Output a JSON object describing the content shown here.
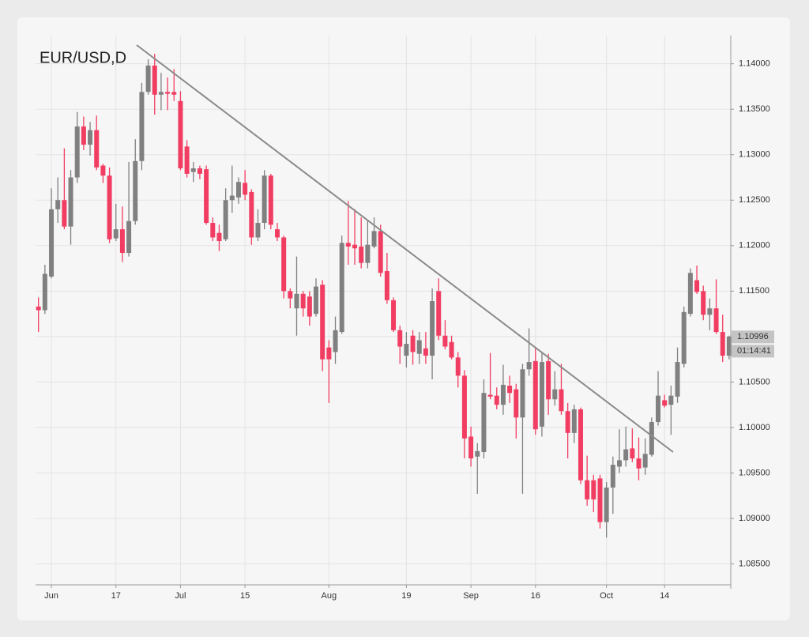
{
  "chart_data": {
    "type": "candlestick",
    "title": "EUR/USD,D",
    "categories": [
      null,
      null,
      "Jun",
      null,
      null,
      null,
      null,
      null,
      null,
      null,
      null,
      null,
      "17",
      null,
      null,
      null,
      null,
      null,
      null,
      null,
      null,
      null,
      "Jul",
      null,
      null,
      null,
      null,
      null,
      null,
      null,
      null,
      null,
      "15",
      null,
      null,
      null,
      null,
      null,
      null,
      null,
      null,
      null,
      null,
      null,
      null,
      "Aug",
      null,
      null,
      null,
      null,
      null,
      null,
      null,
      null,
      null,
      null,
      null,
      "19",
      null,
      null,
      null,
      null,
      null,
      null,
      null,
      null,
      null,
      "Sep",
      null,
      null,
      null,
      null,
      null,
      null,
      null,
      null,
      null,
      "16",
      null,
      null,
      null,
      null,
      null,
      null,
      null,
      null,
      null,
      null,
      "Oct",
      null,
      null,
      null,
      null,
      null,
      null,
      null,
      null,
      "14",
      null,
      null,
      null,
      null,
      null,
      null,
      null,
      null,
      null,
      null
    ],
    "open": [
      1.1133,
      1.1129,
      1.1166,
      1.124,
      1.125,
      1.1221,
      1.1275,
      1.1331,
      1.1311,
      1.1327,
      1.1288,
      1.1277,
      1.1208,
      1.1218,
      1.1192,
      1.1227,
      1.1293,
      1.1369,
      1.1398,
      1.1366,
      1.1369,
      1.1369,
      1.1359,
      1.1309,
      1.1281,
      1.1285,
      1.1284,
      1.1225,
      1.1214,
      1.1207,
      1.125,
      1.1253,
      1.1269,
      1.1259,
      1.1209,
      1.1225,
      1.1277,
      1.1218,
      1.1209,
      1.115,
      1.1131,
      1.1147,
      1.1144,
      1.1125,
      1.1157,
      1.1088,
      1.1083,
      1.1105,
      1.1203,
      1.1201,
      1.1199,
      1.1181,
      1.1199,
      1.1216,
      1.1172,
      1.114,
      1.1107,
      1.1079,
      1.1101,
      1.1081,
      1.1087,
      1.1079,
      1.115,
      1.1101,
      1.1094,
      1.1077,
      1.1057,
      1.099,
      1.0968,
      1.0973,
      1.1036,
      1.1035,
      1.1025,
      1.1046,
      1.1042,
      1.1011,
      1.1064,
      1.1073,
      1.1001,
      1.1073,
      1.1031,
      1.1042,
      1.1018,
      1.0994,
      1.102,
      1.0942,
      1.0942,
      1.0944,
      1.0896,
      1.0934,
      1.0957,
      1.0964,
      1.0977,
      1.0966,
      1.0956,
      1.097,
      1.1006,
      1.103,
      1.1025,
      1.1034,
      1.107,
      1.1125,
      1.1162,
      1.115,
      1.1124,
      1.1131,
      1.1105,
      1.1079
    ],
    "high": [
      1.1143,
      1.1179,
      1.1263,
      1.1275,
      1.1307,
      1.1283,
      1.1347,
      1.1342,
      1.1336,
      1.1343,
      1.129,
      1.1286,
      1.1246,
      1.1243,
      1.1292,
      1.1317,
      1.1379,
      1.1405,
      1.1411,
      1.139,
      1.1385,
      1.1394,
      1.137,
      1.1316,
      1.1292,
      1.1288,
      1.1288,
      1.1231,
      1.1223,
      1.1263,
      1.1288,
      1.1275,
      1.1283,
      1.1262,
      1.124,
      1.1283,
      1.1279,
      1.1225,
      1.1211,
      1.1153,
      1.1188,
      1.115,
      1.115,
      1.1164,
      1.1162,
      1.1096,
      1.1122,
      1.1211,
      1.1249,
      1.124,
      1.1231,
      1.1227,
      1.1231,
      1.1223,
      1.1192,
      1.1143,
      1.1112,
      1.1105,
      1.1107,
      1.1105,
      1.1105,
      1.1153,
      1.1164,
      1.1118,
      1.1101,
      1.1083,
      1.1063,
      1.1001,
      1.0983,
      1.1053,
      1.1082,
      1.1044,
      1.1069,
      1.1057,
      1.1048,
      1.107,
      1.1109,
      1.1088,
      1.1083,
      1.1081,
      1.1062,
      1.107,
      1.1027,
      1.1025,
      1.1022,
      1.0969,
      1.0948,
      1.0948,
      1.094,
      1.0968,
      1.0998,
      1.1001,
      1.0999,
      1.0989,
      1.0988,
      1.1011,
      1.1062,
      1.1036,
      1.1046,
      1.1088,
      1.1133,
      1.1175,
      1.1178,
      1.1156,
      1.1142,
      1.1163,
      1.1124,
      1.1101
    ],
    "low": [
      1.1105,
      1.1125,
      1.1164,
      1.1225,
      1.1218,
      1.1201,
      1.1269,
      1.1305,
      1.1299,
      1.1283,
      1.1269,
      1.1203,
      1.1205,
      1.1182,
      1.1188,
      1.1223,
      1.1283,
      1.1366,
      1.1344,
      1.1349,
      1.1349,
      1.1359,
      1.1283,
      1.1275,
      1.127,
      1.1273,
      1.1223,
      1.1205,
      1.1194,
      1.1205,
      1.1236,
      1.1246,
      1.125,
      1.1201,
      1.1205,
      1.1218,
      1.1218,
      1.1205,
      1.1142,
      1.1131,
      1.1101,
      1.1122,
      1.1112,
      1.1122,
      1.1062,
      1.1027,
      1.107,
      1.1103,
      1.1179,
      1.1179,
      1.1175,
      1.1175,
      1.1197,
      1.1166,
      1.1136,
      1.1105,
      1.107,
      1.1066,
      1.1069,
      1.107,
      1.107,
      1.1053,
      1.1096,
      1.1086,
      1.1075,
      1.1044,
      1.0966,
      1.0957,
      1.0927,
      1.0966,
      1.1031,
      1.102,
      1.1014,
      1.1027,
      1.0988,
      1.0927,
      1.1057,
      1.0992,
      1.099,
      1.1014,
      1.1024,
      1.1014,
      1.0966,
      1.0983,
      1.0938,
      1.0914,
      1.0907,
      1.0889,
      1.0879,
      1.0905,
      1.095,
      1.0957,
      1.0962,
      1.0942,
      1.0948,
      1.0968,
      1.1002,
      1.1022,
      1.0992,
      1.1027,
      1.1066,
      1.1122,
      1.1147,
      1.1118,
      1.1107,
      1.1103,
      1.1072,
      1.1075
    ],
    "close": [
      1.1129,
      1.1169,
      1.124,
      1.125,
      1.1221,
      1.1275,
      1.1331,
      1.1311,
      1.1327,
      1.1286,
      1.1277,
      1.1207,
      1.1218,
      1.1192,
      1.1227,
      1.1293,
      1.1369,
      1.1398,
      1.1366,
      1.1369,
      1.1367,
      1.1366,
      1.1285,
      1.1279,
      1.1285,
      1.1279,
      1.1225,
      1.1209,
      1.1205,
      1.125,
      1.1255,
      1.127,
      1.1256,
      1.1209,
      1.1225,
      1.1277,
      1.1223,
      1.1209,
      1.115,
      1.1142,
      1.1147,
      1.1131,
      1.1122,
      1.1155,
      1.1075,
      1.1075,
      1.1107,
      1.1203,
      1.1199,
      1.1197,
      1.1181,
      1.1201,
      1.1216,
      1.117,
      1.114,
      1.1107,
      1.1089,
      1.1092,
      1.1083,
      1.1096,
      1.1079,
      1.1139,
      1.1101,
      1.1089,
      1.1077,
      1.1057,
      1.0988,
      1.0966,
      1.0974,
      1.1038,
      1.1034,
      1.1025,
      1.1047,
      1.1038,
      1.1011,
      1.1064,
      1.1072,
      1.0998,
      1.1072,
      1.1031,
      1.1042,
      1.1018,
      1.0994,
      1.102,
      1.0942,
      1.0921,
      1.0921,
      1.0896,
      1.0934,
      1.0959,
      1.0964,
      1.0976,
      1.0966,
      1.0955,
      1.0971,
      1.1006,
      1.1035,
      1.1024,
      1.1035,
      1.1072,
      1.1127,
      1.117,
      1.1149,
      1.1124,
      1.1131,
      1.1105,
      1.1079,
      1.11
    ],
    "up_color": "#808080",
    "down_color": "#f23d63",
    "ylim": [
      1.0827,
      1.1431
    ],
    "yticks": [
      {
        "value": 1.14,
        "label": "1.14000"
      },
      {
        "value": 1.135,
        "label": "1.13500"
      },
      {
        "value": 1.13,
        "label": "1.13000"
      },
      {
        "value": 1.125,
        "label": "1.12500"
      },
      {
        "value": 1.12,
        "label": "1.12000"
      },
      {
        "value": 1.115,
        "label": "1.11500"
      },
      {
        "value": 1.11,
        "label": "1.11000"
      },
      {
        "value": 1.105,
        "label": "1.10500"
      },
      {
        "value": 1.1,
        "label": "1.10000"
      },
      {
        "value": 1.095,
        "label": "1.09500"
      },
      {
        "value": 1.09,
        "label": "1.09000"
      },
      {
        "value": 1.085,
        "label": "1.08500"
      }
    ],
    "grid": true,
    "last_price": 1.10996,
    "countdown": "01:14:41"
  }
}
